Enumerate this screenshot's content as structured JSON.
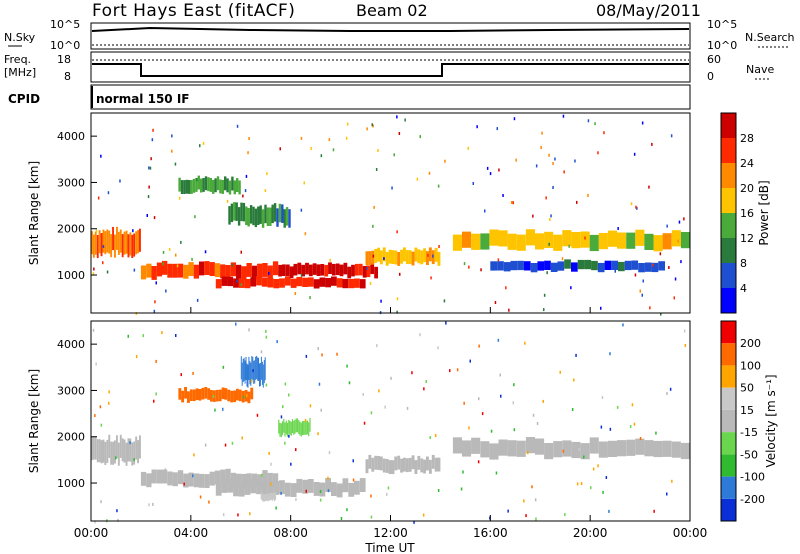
{
  "header": {
    "radar": "Fort Hays East (fitACF)",
    "beam": "Beam 02",
    "date": "08/May/2011"
  },
  "panels": {
    "nsky": {
      "left_label": "N.Sky",
      "right_label": "N.Search",
      "ticks": [
        "10^5",
        "10^0"
      ]
    },
    "freq": {
      "left_label_1": "Freq.",
      "left_label_2": "[MHz]",
      "ticks": [
        "18",
        "8"
      ],
      "right_label": "Nave",
      "right_ticks": [
        "60",
        "0"
      ]
    },
    "cpid": {
      "label": "CPID",
      "value": "normal 150 IF"
    }
  },
  "colors": {
    "power": [
      "#0000ff",
      "#1e4fd0",
      "#2a7a3c",
      "#4aaa3a",
      "#ffc400",
      "#ff8a00",
      "#ff2a00",
      "#cc0000"
    ],
    "velocity": [
      "#0a2fd6",
      "#2e7ad8",
      "#2fba2f",
      "#6ad64e",
      "#b9b9b9",
      "#c8c8c8",
      "#ffa500",
      "#ff6a00",
      "#f00000"
    ],
    "nsky_line": "#000000",
    "freq_line": "#000000"
  },
  "chart_data": [
    {
      "type": "heatmap",
      "name": "power",
      "title": "",
      "ylabel": "Slant Range [km]",
      "ylim": [
        180,
        4500
      ],
      "xlim": [
        0,
        24
      ],
      "yticks": [
        "1000",
        "2000",
        "3000",
        "4000"
      ],
      "colorbar": {
        "label": "Power [dB]",
        "ticks": [
          "4",
          "8",
          "12",
          "16",
          "20",
          "24",
          "28"
        ],
        "range": [
          0,
          30
        ]
      },
      "echo_bands": [
        {
          "t0": 0.0,
          "t1": 2.0,
          "range_center": 1700,
          "width": 500,
          "value": 22
        },
        {
          "t0": 2.0,
          "t1": 7.5,
          "range_center": 1100,
          "width": 300,
          "value": 24
        },
        {
          "t0": 5.0,
          "t1": 11.0,
          "range_center": 850,
          "width": 200,
          "value": 26
        },
        {
          "t0": 7.5,
          "t1": 11.5,
          "range_center": 1100,
          "width": 250,
          "value": 28
        },
        {
          "t0": 11.0,
          "t1": 14.0,
          "range_center": 1400,
          "width": 300,
          "value": 18
        },
        {
          "t0": 14.5,
          "t1": 24.0,
          "range_center": 1750,
          "width": 350,
          "value": 16
        },
        {
          "t0": 16.0,
          "t1": 23.0,
          "range_center": 1200,
          "width": 200,
          "value": 6
        },
        {
          "t0": 3.5,
          "t1": 6.0,
          "range_center": 2950,
          "width": 300,
          "value": 12
        },
        {
          "t0": 5.5,
          "t1": 8.0,
          "range_center": 2300,
          "width": 400,
          "value": 10
        }
      ]
    },
    {
      "type": "heatmap",
      "name": "velocity",
      "title": "",
      "ylabel": "Slant Range [km]",
      "xlabel": "Time UT",
      "ylim": [
        180,
        4500
      ],
      "xlim": [
        0,
        24
      ],
      "yticks": [
        "1000",
        "2000",
        "3000",
        "4000"
      ],
      "xticks": [
        "00:00",
        "04:00",
        "08:00",
        "12:00",
        "16:00",
        "20:00",
        "00:00"
      ],
      "colorbar": {
        "label": "Velocity [m s⁻¹]",
        "ticks": [
          "200",
          "100",
          "50",
          "15",
          "-15",
          "-50",
          "-100",
          "-200"
        ],
        "range": [
          -250,
          250
        ]
      },
      "echo_bands": [
        {
          "t0": 0.0,
          "t1": 2.0,
          "range_center": 1700,
          "width": 500,
          "value": -5
        },
        {
          "t0": 2.0,
          "t1": 7.5,
          "range_center": 1100,
          "width": 300,
          "value": 0
        },
        {
          "t0": 5.0,
          "t1": 11.0,
          "range_center": 900,
          "width": 300,
          "value": -5
        },
        {
          "t0": 11.0,
          "t1": 14.0,
          "range_center": 1400,
          "width": 300,
          "value": 5
        },
        {
          "t0": 14.5,
          "t1": 24.0,
          "range_center": 1750,
          "width": 350,
          "value": 0
        },
        {
          "t0": 3.5,
          "t1": 6.5,
          "range_center": 2900,
          "width": 250,
          "value": 180
        },
        {
          "t0": 6.0,
          "t1": 7.0,
          "range_center": 3400,
          "width": 500,
          "value": -180
        },
        {
          "t0": 7.5,
          "t1": 8.8,
          "range_center": 2200,
          "width": 300,
          "value": -60
        },
        {
          "t0": 6.8,
          "t1": 7.4,
          "range_center": 700,
          "width": 150,
          "value": 40
        }
      ]
    }
  ]
}
